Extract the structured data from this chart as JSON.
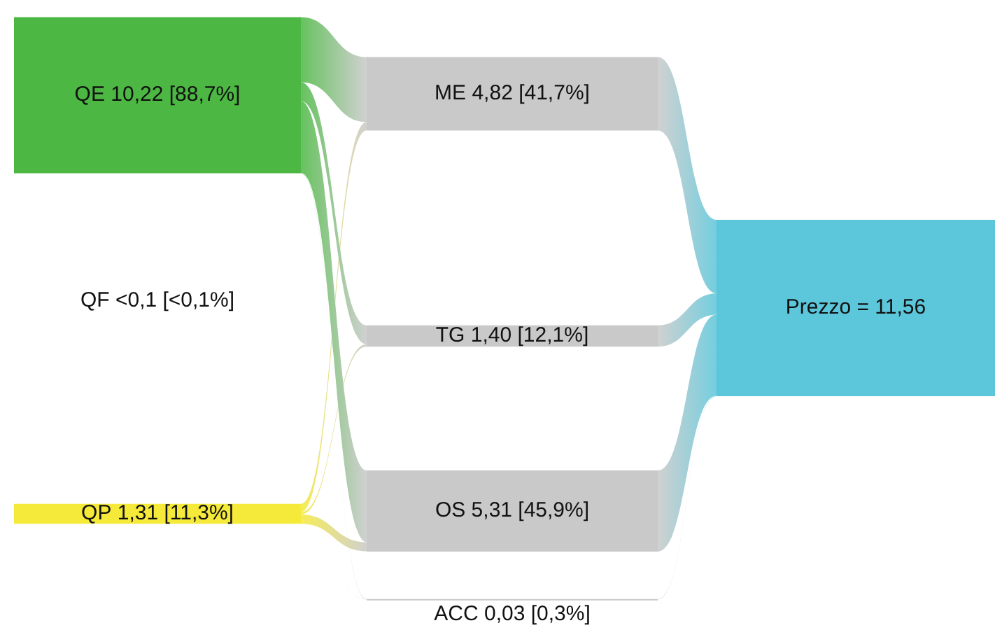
{
  "chart_data": {
    "type": "other",
    "categories": [
      "QE",
      "QF",
      "QP",
      "ME",
      "TG",
      "OS",
      "ACC",
      "Prezzo ="
    ],
    "values": [
      10.22,
      null,
      1.31,
      4.82,
      1.4,
      5.31,
      0.03,
      11.56
    ],
    "value_labels": [
      "10,22",
      "<0,1",
      "1,31",
      "4,82",
      "1,40",
      "5,31",
      "0,03",
      "11,56"
    ],
    "annotations": [
      "[88,7%]",
      "[<0,1%]",
      "[11,3%]",
      "[41,7%]",
      "[12,1%]",
      "[45,9%]",
      "[0,3%]"
    ],
    "colors": [
      "#4cb843",
      "#ffffff",
      "#f5ea3a",
      "#c9c9c9",
      "#c9c9c9",
      "#c9c9c9",
      "#c9c9c9",
      "#5cc6da"
    ]
  }
}
